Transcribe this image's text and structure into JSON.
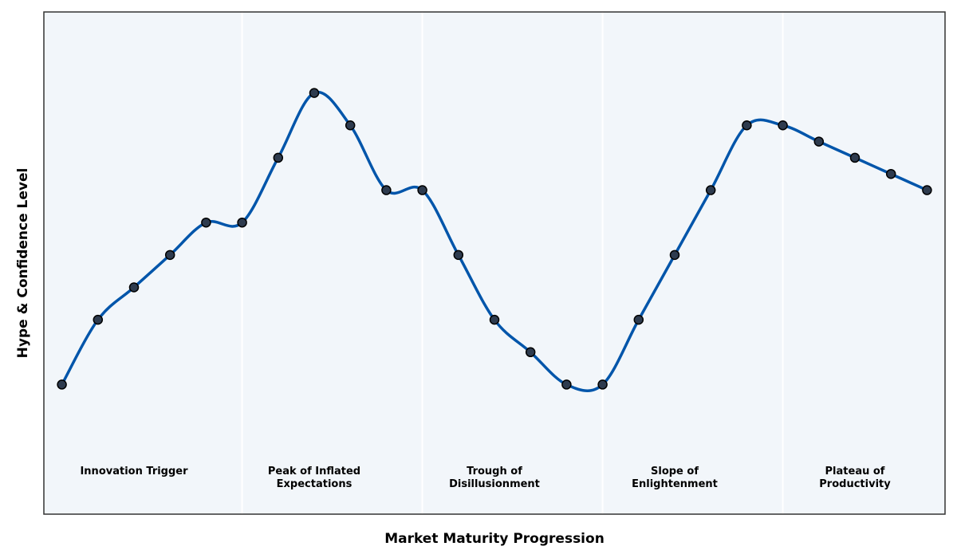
{
  "chart_data": {
    "type": "line",
    "title": "",
    "xlabel": "Market Maturity Progression",
    "ylabel": "Hype & Confidence Level",
    "x": [
      1,
      2,
      3,
      4,
      5,
      6,
      7,
      8,
      9,
      10,
      11,
      12,
      13,
      14,
      15,
      16,
      17,
      18,
      19,
      20,
      21,
      22,
      23,
      24,
      25
    ],
    "series": [
      {
        "values": [
          2.0,
          2.2,
          2.3,
          2.4,
          2.5,
          2.5,
          2.7,
          2.9,
          2.8,
          2.6,
          2.6,
          2.4,
          2.2,
          2.1,
          2.0,
          2.0,
          2.2,
          2.4,
          2.6,
          2.8,
          2.8,
          2.75,
          2.7,
          2.65,
          2.6
        ]
      }
    ],
    "xlim": [
      0.5,
      25.5
    ],
    "ylim": [
      1.6,
      3.15
    ],
    "phases": [
      {
        "label_lines": [
          "Innovation Trigger"
        ],
        "start": 0.5,
        "end": 6,
        "center": 3
      },
      {
        "label_lines": [
          "Peak of Inflated",
          "Expectations"
        ],
        "start": 6,
        "end": 11,
        "center": 8
      },
      {
        "label_lines": [
          "Trough of",
          "Disillusionment"
        ],
        "start": 11,
        "end": 16,
        "center": 13
      },
      {
        "label_lines": [
          "Slope of",
          "Enlightenment"
        ],
        "start": 16,
        "end": 21,
        "center": 18
      },
      {
        "label_lines": [
          "Plateau of",
          "Productivity"
        ],
        "start": 21,
        "end": 25.5,
        "center": 23
      }
    ],
    "grid": false,
    "colors": {
      "line": "#0055aa",
      "marker_fill": "#2e3b4e",
      "marker_edge": "#000000",
      "background": "#f2f6fa",
      "phase_divider": "#ffffff",
      "frame": "#333333"
    }
  }
}
